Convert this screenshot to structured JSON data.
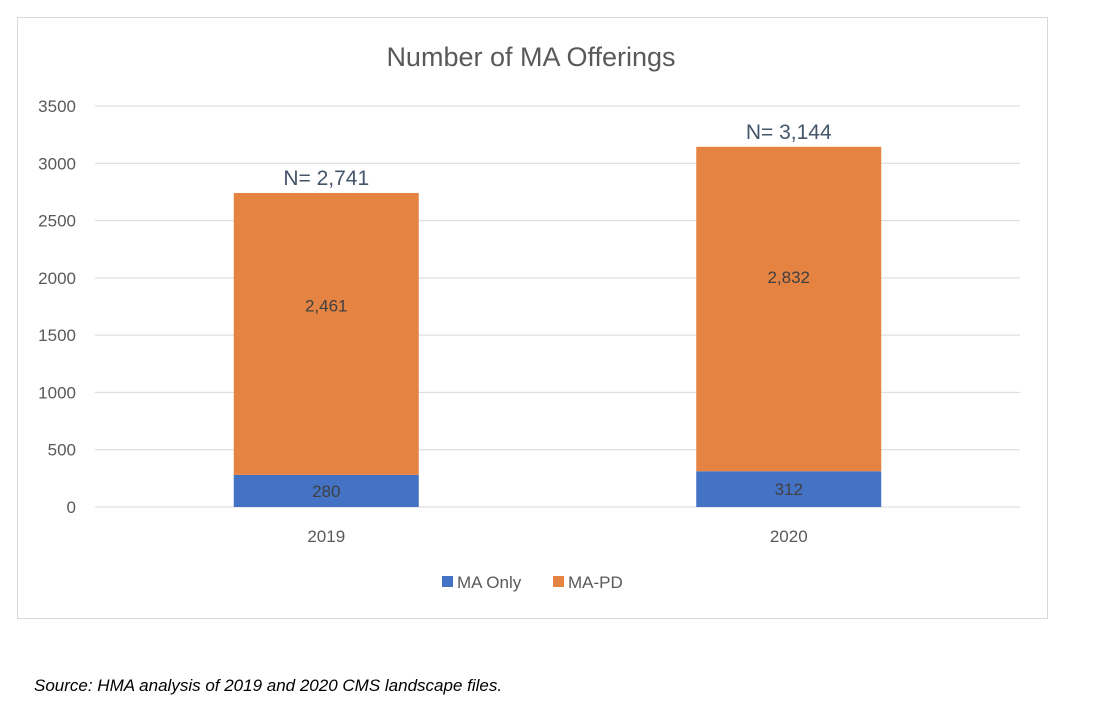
{
  "chart_data": {
    "type": "bar",
    "stacked": true,
    "title": "Number of MA Offerings",
    "xlabel": "",
    "ylabel": "",
    "categories": [
      "2019",
      "2020"
    ],
    "series": [
      {
        "name": "MA Only",
        "values": [
          280,
          312
        ],
        "labels": [
          "280",
          "312"
        ],
        "color": "#4472c4"
      },
      {
        "name": "MA-PD",
        "values": [
          2461,
          2832
        ],
        "labels": [
          "2,461",
          "2,832"
        ],
        "color": "#e48342"
      }
    ],
    "totals": [
      "N= 2,741",
      "N= 3,144"
    ],
    "ylim": [
      0,
      3500
    ],
    "yticks": [
      0,
      500,
      1000,
      1500,
      2000,
      2500,
      3000,
      3500
    ],
    "grid": true,
    "legend": "bottom-center"
  },
  "source_note": "Source: HMA analysis of 2019 and 2020 CMS landscape files."
}
